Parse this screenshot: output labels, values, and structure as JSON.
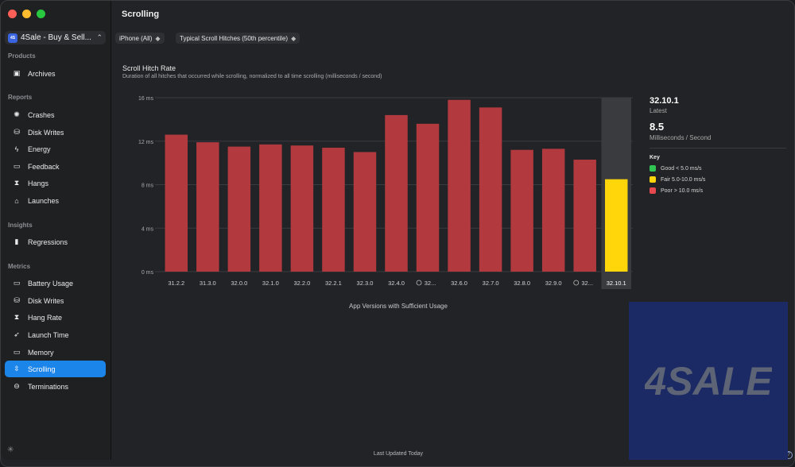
{
  "app": {
    "selector_label": "4Sale - Buy & Sell...",
    "icon_text": "4S"
  },
  "sidebar": {
    "sections": [
      {
        "title": "Products",
        "items": [
          {
            "label": "Archives",
            "icon": "archive-icon"
          }
        ]
      },
      {
        "title": "Reports",
        "items": [
          {
            "label": "Crashes",
            "icon": "crash-icon"
          },
          {
            "label": "Disk Writes",
            "icon": "disk-icon"
          },
          {
            "label": "Energy",
            "icon": "energy-icon"
          },
          {
            "label": "Feedback",
            "icon": "feedback-icon"
          },
          {
            "label": "Hangs",
            "icon": "hourglass-icon"
          },
          {
            "label": "Launches",
            "icon": "launch-icon"
          }
        ]
      },
      {
        "title": "Insights",
        "items": [
          {
            "label": "Regressions",
            "icon": "regressions-icon"
          }
        ]
      },
      {
        "title": "Metrics",
        "items": [
          {
            "label": "Battery Usage",
            "icon": "battery-icon"
          },
          {
            "label": "Disk Writes",
            "icon": "disk-icon"
          },
          {
            "label": "Hang Rate",
            "icon": "hourglass-icon"
          },
          {
            "label": "Launch Time",
            "icon": "rocket-icon"
          },
          {
            "label": "Memory",
            "icon": "memory-icon"
          },
          {
            "label": "Scrolling",
            "icon": "scroll-icon",
            "active": true
          },
          {
            "label": "Terminations",
            "icon": "terminations-icon"
          }
        ]
      }
    ]
  },
  "header": {
    "title": "Scrolling",
    "device_filter": "iPhone (All)",
    "metric_filter": "Typical Scroll Hitches (50th percentile)"
  },
  "chart_header": {
    "title": "Scroll Hitch Rate",
    "subtitle": "Duration of all hitches that occurred while scrolling, normalized to all time scrolling (milliseconds / second)"
  },
  "chart_data": {
    "type": "bar",
    "title": "Scroll Hitch Rate",
    "xlabel": "App Versions with Sufficient Usage",
    "ylabel": "",
    "ylim": [
      0,
      16
    ],
    "yticks": [
      0,
      4,
      8,
      12,
      16
    ],
    "ytick_labels": [
      "0 ms",
      "4 ms",
      "8 ms",
      "12 ms",
      "16 ms"
    ],
    "categories": [
      "31.2.2",
      "31.3.0",
      "32.0.0",
      "32.1.0",
      "32.2.0",
      "32.2.1",
      "32.3.0",
      "32.4.0",
      "32...",
      "32.6.0",
      "32.7.0",
      "32.8.0",
      "32.9.0",
      "32...",
      "32.10.1"
    ],
    "category_has_clock_icon": [
      false,
      false,
      false,
      false,
      false,
      false,
      false,
      false,
      true,
      false,
      false,
      false,
      false,
      true,
      false
    ],
    "values": [
      12.6,
      11.9,
      11.5,
      11.7,
      11.6,
      11.4,
      11.0,
      14.4,
      13.6,
      15.8,
      15.1,
      11.2,
      11.3,
      10.3,
      8.5
    ],
    "colors": [
      "#b23a3e",
      "#b23a3e",
      "#b23a3e",
      "#b23a3e",
      "#b23a3e",
      "#b23a3e",
      "#b23a3e",
      "#b23a3e",
      "#b23a3e",
      "#b23a3e",
      "#b23a3e",
      "#b23a3e",
      "#b23a3e",
      "#b23a3e",
      "#ffd60a"
    ],
    "highlighted_category": "32.10.1",
    "grid": true
  },
  "summary": {
    "version": "32.10.1",
    "version_caption": "Latest",
    "value": "8.5",
    "value_caption": "Milliseconds / Second",
    "key_title": "Key",
    "key": [
      {
        "label": "Good < 5.0 ms/s",
        "color": "#30c552"
      },
      {
        "label": "Fair 5.0-10.0 ms/s",
        "color": "#ffd60a"
      },
      {
        "label": "Poor > 10.0 ms/s",
        "color": "#e5484d"
      }
    ]
  },
  "footer": {
    "status": "Last Updated Today",
    "help": "?"
  },
  "watermark": {
    "text": "4SALE"
  }
}
